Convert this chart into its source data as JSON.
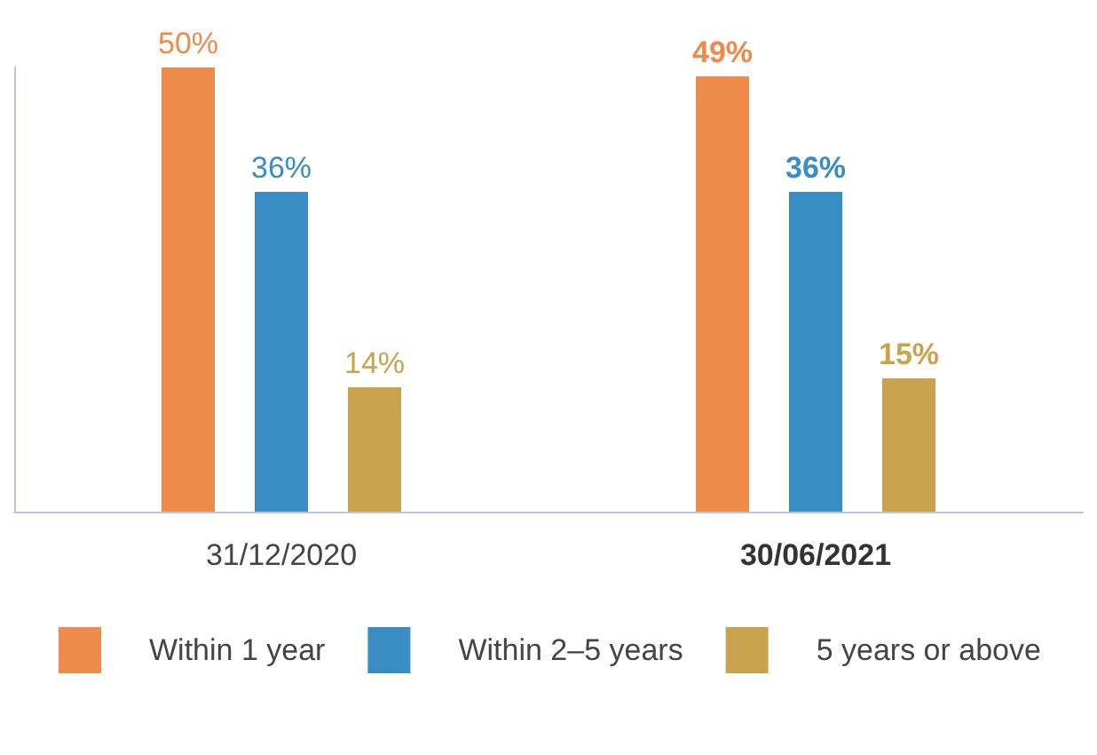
{
  "chart_data": {
    "type": "bar",
    "categories": [
      "31/12/2020",
      "30/06/2021"
    ],
    "series": [
      {
        "name": "Within 1 year",
        "color": "#ee8a4a",
        "values": [
          50,
          49
        ],
        "value_labels": [
          "50%",
          "49%"
        ]
      },
      {
        "name": "Within 2–5 years",
        "color": "#3a8cc4",
        "values": [
          36,
          36
        ],
        "value_labels": [
          "36%",
          "36%"
        ]
      },
      {
        "name": "5 years or above",
        "color": "#c9a24e",
        "values": [
          14,
          15
        ],
        "value_labels": [
          "14%",
          "15%"
        ]
      }
    ],
    "legend": "bottom",
    "grid": false,
    "tick_labels": "x"
  }
}
